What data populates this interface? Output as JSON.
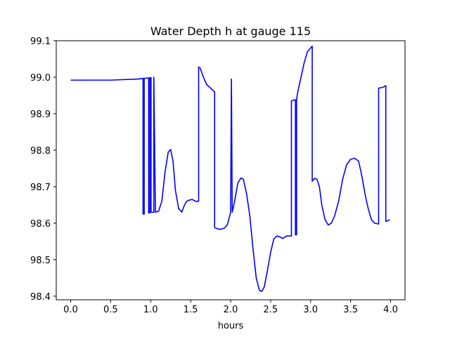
{
  "chart_data": {
    "type": "line",
    "title": "Water Depth h at gauge 115",
    "xlabel": "hours",
    "ylabel": "",
    "xlim": [
      -0.18,
      4.18
    ],
    "ylim": [
      98.39,
      99.1
    ],
    "xticks": [
      0.0,
      0.5,
      1.0,
      1.5,
      2.0,
      2.5,
      3.0,
      3.5,
      4.0
    ],
    "xtick_labels": [
      "0.0",
      "0.5",
      "1.0",
      "1.5",
      "2.0",
      "2.5",
      "3.0",
      "3.5",
      "4.0"
    ],
    "yticks": [
      98.4,
      98.5,
      98.6,
      98.7,
      98.8,
      98.9,
      99.0,
      99.1
    ],
    "ytick_labels": [
      "98.4",
      "98.5",
      "98.6",
      "98.7",
      "98.8",
      "98.9",
      "99.0",
      "99.1"
    ],
    "grid": false,
    "series": [
      {
        "color": "#0000ff",
        "x": [
          0.0,
          0.5,
          0.85,
          0.905,
          0.905,
          0.92,
          0.92,
          0.975,
          0.975,
          0.99,
          0.99,
          1.005,
          1.005,
          1.04,
          1.04,
          1.06,
          1.1,
          1.14,
          1.18,
          1.22,
          1.25,
          1.28,
          1.31,
          1.35,
          1.39,
          1.42,
          1.45,
          1.48,
          1.52,
          1.56,
          1.6,
          1.6,
          1.62,
          1.66,
          1.7,
          1.75,
          1.8,
          1.8,
          1.83,
          1.87,
          1.92,
          1.96,
          2.0,
          2.01,
          2.01,
          2.02,
          2.02,
          2.05,
          2.09,
          2.13,
          2.16,
          2.2,
          2.24,
          2.28,
          2.32,
          2.36,
          2.39,
          2.42,
          2.46,
          2.5,
          2.54,
          2.58,
          2.62,
          2.65,
          2.7,
          2.75,
          2.76,
          2.76,
          2.8,
          2.81,
          2.81,
          2.825,
          2.825,
          2.84,
          2.88,
          2.92,
          2.96,
          3.0,
          3.02,
          3.02,
          3.05,
          3.08,
          3.11,
          3.14,
          3.18,
          3.22,
          3.26,
          3.3,
          3.35,
          3.4,
          3.45,
          3.5,
          3.55,
          3.6,
          3.64,
          3.68,
          3.72,
          3.76,
          3.8,
          3.84,
          3.85,
          3.85,
          3.9,
          3.94,
          3.94,
          3.99
        ],
        "y": [
          98.992,
          98.992,
          98.995,
          98.997,
          98.625,
          98.625,
          98.997,
          98.998,
          98.628,
          98.628,
          98.999,
          98.999,
          98.63,
          98.63,
          99.0,
          98.63,
          98.633,
          98.66,
          98.74,
          98.795,
          98.802,
          98.77,
          98.69,
          98.64,
          98.63,
          98.648,
          98.66,
          98.663,
          98.665,
          98.66,
          98.66,
          99.028,
          99.025,
          99.0,
          98.98,
          98.97,
          98.96,
          98.588,
          98.585,
          98.583,
          98.586,
          98.596,
          98.63,
          98.995,
          98.995,
          98.63,
          98.63,
          98.66,
          98.71,
          98.724,
          98.72,
          98.68,
          98.62,
          98.53,
          98.45,
          98.416,
          98.413,
          98.425,
          98.47,
          98.52,
          98.557,
          98.565,
          98.562,
          98.558,
          98.565,
          98.565,
          98.565,
          98.935,
          98.938,
          98.938,
          98.568,
          98.568,
          98.94,
          98.96,
          99.0,
          99.04,
          99.07,
          99.08,
          99.085,
          98.715,
          98.723,
          98.72,
          98.7,
          98.65,
          98.61,
          98.595,
          98.6,
          98.62,
          98.66,
          98.72,
          98.76,
          98.775,
          98.778,
          98.77,
          98.73,
          98.68,
          98.64,
          98.61,
          98.6,
          98.598,
          98.598,
          98.97,
          98.972,
          98.977,
          98.605,
          98.609
        ]
      }
    ]
  }
}
